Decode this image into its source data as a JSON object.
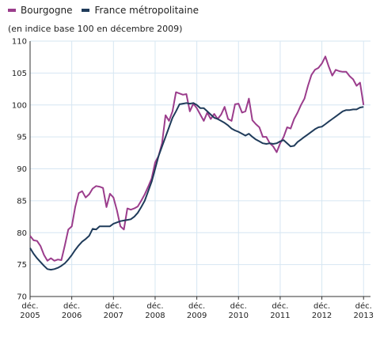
{
  "legend": [
    {
      "label": "Bourgogne",
      "color": "#9b3d8c"
    },
    {
      "label": "France métropolitaine",
      "color": "#1f3b5a"
    }
  ],
  "subtitle": "(en indice base 100 en décembre 2009)",
  "chart_data": {
    "type": "line",
    "title": "",
    "subtitle": "(en indice base 100 en décembre 2009)",
    "xlabel": "",
    "ylabel": "",
    "ylim": [
      70,
      110
    ],
    "yticks": [
      70,
      75,
      80,
      85,
      90,
      95,
      100,
      105,
      110
    ],
    "xticks": [
      {
        "t": 0,
        "line1": "déc.",
        "line2": "2005"
      },
      {
        "t": 12,
        "line1": "déc.",
        "line2": "2006"
      },
      {
        "t": 24,
        "line1": "déc.",
        "line2": "2007"
      },
      {
        "t": 36,
        "line1": "déc.",
        "line2": "2008"
      },
      {
        "t": 48,
        "line1": "déc.",
        "line2": "2009"
      },
      {
        "t": 60,
        "line1": "déc.",
        "line2": "2010"
      },
      {
        "t": 72,
        "line1": "déc.",
        "line2": "2011"
      },
      {
        "t": 84,
        "line1": "déc.",
        "line2": "2012"
      },
      {
        "t": 96,
        "line1": "déc.",
        "line2": "2013"
      }
    ],
    "x_start": "déc. 2005",
    "x_step": "month",
    "grid": true,
    "legend_position": "top-left",
    "series": [
      {
        "name": "Bourgogne",
        "color": "#9b3d8c",
        "values": [
          79.5,
          78.8,
          78.7,
          77.9,
          76.5,
          75.6,
          76.0,
          75.6,
          75.8,
          75.7,
          78.0,
          80.5,
          81.0,
          84.0,
          86.2,
          86.5,
          85.5,
          86.0,
          86.9,
          87.3,
          87.2,
          87.0,
          84.0,
          86.1,
          85.5,
          83.5,
          81.0,
          80.5,
          83.8,
          83.6,
          83.8,
          84.1,
          85.0,
          86.0,
          87.2,
          88.5,
          91.0,
          92.0,
          94.0,
          98.4,
          97.5,
          99.0,
          102.0,
          101.8,
          101.6,
          101.7,
          99.0,
          100.2,
          99.5,
          98.5,
          97.5,
          98.8,
          97.8,
          98.6,
          97.8,
          98.5,
          99.7,
          97.8,
          97.5,
          100.1,
          100.2,
          98.8,
          99.0,
          101.0,
          97.6,
          97.0,
          96.5,
          95.0,
          95.0,
          94.0,
          93.5,
          92.6,
          94.0,
          95.0,
          96.5,
          96.3,
          97.8,
          98.8,
          100.0,
          101.0,
          103.0,
          104.7,
          105.5,
          105.8,
          106.5,
          107.6,
          106.0,
          104.6,
          105.5,
          105.3,
          105.2,
          105.2,
          104.5,
          104.0,
          103.0,
          103.5,
          100.0
        ]
      },
      {
        "name": "France métropolitaine",
        "color": "#1f3b5a",
        "values": [
          77.6,
          76.7,
          76.0,
          75.4,
          74.8,
          74.3,
          74.2,
          74.3,
          74.5,
          74.8,
          75.2,
          75.8,
          76.5,
          77.3,
          78.0,
          78.6,
          79.0,
          79.5,
          80.6,
          80.5,
          81.0,
          81.0,
          81.0,
          81.0,
          81.4,
          81.6,
          81.8,
          81.9,
          82.0,
          82.1,
          82.5,
          83.1,
          84.0,
          85.0,
          86.5,
          88.0,
          90.0,
          92.0,
          93.5,
          95.0,
          96.5,
          98.0,
          99.0,
          100.1,
          100.2,
          100.3,
          100.2,
          100.3,
          100.0,
          99.5,
          99.5,
          99.0,
          98.5,
          98.0,
          97.8,
          97.5,
          97.2,
          96.8,
          96.3,
          96.0,
          95.8,
          95.5,
          95.2,
          95.5,
          95.0,
          94.6,
          94.3,
          94.0,
          93.9,
          94.0,
          93.9,
          94.0,
          94.3,
          94.5,
          94.0,
          93.5,
          93.6,
          94.2,
          94.6,
          95.0,
          95.4,
          95.8,
          96.2,
          96.5,
          96.6,
          97.0,
          97.4,
          97.8,
          98.2,
          98.6,
          99.0,
          99.2,
          99.2,
          99.3,
          99.3,
          99.6,
          99.7
        ]
      }
    ]
  }
}
